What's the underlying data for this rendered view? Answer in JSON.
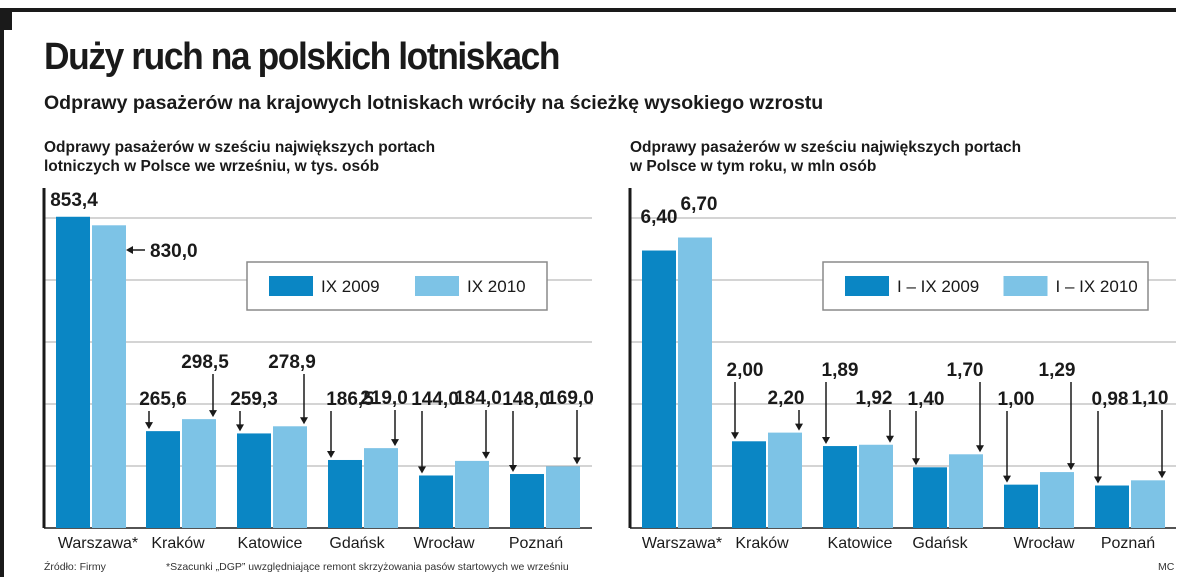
{
  "title": "Duży ruch na polskich lotniskach",
  "subtitle": "Odprawy pasażerów na krajowych lotniskach wróciły na ścieżkę wysokiego wzrostu",
  "source": "Źródło: Firmy",
  "footnote": "*Szacunki „DGP” uwzględniające remont skrzyżowania pasów startowych we wrześniu",
  "author": "MC",
  "colors": {
    "dark": "#0a86c4",
    "light": "#7dc3e6",
    "grid": "#a8a8a8"
  },
  "chart_data": [
    {
      "type": "bar",
      "title": "Odprawy pasażerów w sześciu największych portach lotniczych w Polsce we wrześniu, w tys. osób",
      "title_lines": [
        "Odprawy pasażerów w sześciu największych portach",
        "lotniczych w Polsce we wrześniu, w tys. osób"
      ],
      "categories": [
        "Warszawa*",
        "Kraków",
        "Katowice",
        "Gdańsk",
        "Wrocław",
        "Poznań"
      ],
      "series": [
        {
          "name": "IX 2009",
          "values": [
            853.4,
            265.6,
            259.3,
            186.5,
            144.0,
            148.0
          ],
          "labels": [
            "853,4",
            "265,6",
            "259,3",
            "186,5",
            "144,0",
            "148,0"
          ]
        },
        {
          "name": "IX 2010",
          "values": [
            830.0,
            298.5,
            278.9,
            219.0,
            184.0,
            169.0
          ],
          "labels": [
            "830,0",
            "298,5",
            "278,9",
            "219,0",
            "184,0",
            "169,0"
          ]
        }
      ],
      "ylim": [
        0,
        850
      ],
      "grid": true,
      "legend": "top-right"
    },
    {
      "type": "bar",
      "title": "Odprawy pasażerów w sześciu największych portach w Polsce w tym roku, w mln osób",
      "title_lines": [
        "Odprawy pasażerów w sześciu największych portach",
        "w Polsce w tym roku, w mln osób"
      ],
      "categories": [
        "Warszawa*",
        "Kraków",
        "Katowice",
        "Gdańsk",
        "Wrocław",
        "Poznań"
      ],
      "series": [
        {
          "name": "I – IX 2009",
          "values": [
            6.4,
            2.0,
            1.89,
            1.4,
            1.0,
            0.98
          ],
          "labels": [
            "6,40",
            "2,00",
            "1,89",
            "1,40",
            "1,00",
            "0,98"
          ]
        },
        {
          "name": "I – IX 2010",
          "values": [
            6.7,
            2.2,
            1.92,
            1.7,
            1.29,
            1.1
          ],
          "labels": [
            "6,70",
            "2,20",
            "1,92",
            "1,70",
            "1,29",
            "1,10"
          ]
        }
      ],
      "ylim": [
        0,
        7.15
      ],
      "grid": true,
      "legend": "top-right"
    }
  ]
}
